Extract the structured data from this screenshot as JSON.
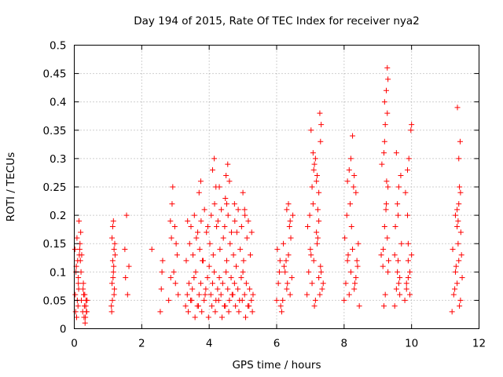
{
  "chart_data": {
    "type": "scatter",
    "title": "Day 194 of 2015, Rate Of TEC Index for receiver nya2",
    "xlabel": "GPS time / hours",
    "ylabel": "ROTI / TECUs",
    "xlim": [
      0,
      12
    ],
    "ylim": [
      0,
      0.5
    ],
    "xticks": [
      "0",
      "2",
      "4",
      "6",
      "8",
      "10",
      "12"
    ],
    "yticks": [
      "0",
      "0.05",
      "0.1",
      "0.15",
      "0.2",
      "0.25",
      "0.3",
      "0.35",
      "0.4",
      "0.45",
      "0.5"
    ],
    "grid": true,
    "marker": "+",
    "color": "#ff0000",
    "series": [
      {
        "name": "ROTI",
        "x": [
          0.02,
          0.05,
          0.08,
          0.1,
          0.12,
          0.15,
          0.17,
          0.19,
          0.03,
          0.06,
          0.09,
          0.12,
          0.14,
          0.16,
          0.18,
          0.2,
          0.22,
          0.04,
          0.07,
          0.11,
          0.13,
          0.21,
          0.25,
          0.28,
          0.3,
          0.33,
          0.35,
          0.37,
          0.27,
          0.29,
          0.31,
          0.34,
          0.36,
          0.38,
          0.26,
          0.32,
          1.1,
          1.12,
          1.14,
          1.16,
          1.18,
          1.2,
          1.13,
          1.15,
          1.17,
          1.19,
          1.11,
          1.21,
          1.14,
          1.16,
          1.12,
          1.18,
          1.5,
          1.52,
          1.55,
          1.58,
          1.62,
          2.3,
          2.55,
          2.6,
          2.62,
          2.58,
          2.8,
          2.85,
          2.88,
          2.9,
          2.95,
          3.0,
          3.05,
          3.08,
          2.92,
          2.98,
          3.02,
          2.86,
          3.3,
          3.35,
          3.4,
          3.45,
          3.5,
          3.55,
          3.6,
          3.65,
          3.7,
          3.75,
          3.8,
          3.85,
          3.9,
          3.95,
          4.0,
          4.05,
          4.1,
          4.15,
          4.2,
          4.25,
          4.3,
          4.35,
          4.4,
          4.45,
          4.5,
          4.55,
          4.6,
          4.65,
          4.7,
          4.75,
          4.8,
          4.85,
          4.9,
          4.95,
          5.0,
          5.05,
          5.1,
          5.15,
          5.2,
          5.25,
          5.3,
          3.32,
          3.42,
          3.52,
          3.62,
          3.72,
          3.82,
          3.92,
          4.02,
          4.12,
          4.22,
          4.32,
          4.42,
          4.52,
          4.62,
          4.72,
          4.82,
          4.92,
          5.02,
          5.12,
          5.22,
          3.38,
          3.48,
          3.58,
          3.68,
          3.78,
          3.88,
          3.98,
          4.08,
          4.18,
          4.28,
          4.38,
          4.48,
          4.58,
          4.68,
          4.78,
          4.88,
          4.98,
          5.08,
          5.18,
          5.28,
          3.36,
          3.46,
          3.56,
          3.66,
          3.76,
          3.86,
          3.96,
          4.06,
          4.16,
          4.26,
          4.36,
          4.46,
          4.56,
          4.66,
          4.76,
          4.86,
          4.96,
          5.06,
          5.16,
          5.26,
          3.7,
          3.75,
          4.1,
          4.15,
          4.2,
          4.5,
          4.55,
          4.48,
          4.6,
          4.52,
          5.0,
          5.05,
          4.75,
          4.3,
          6.0,
          6.05,
          6.1,
          6.15,
          6.2,
          6.25,
          6.3,
          6.35,
          6.4,
          6.45,
          6.02,
          6.12,
          6.22,
          6.32,
          6.42,
          6.08,
          6.18,
          6.28,
          6.38,
          6.48,
          6.3,
          6.35,
          6.4,
          6.9,
          6.95,
          7.0,
          7.05,
          7.1,
          7.15,
          7.2,
          7.25,
          7.3,
          7.35,
          6.92,
          7.02,
          7.12,
          7.22,
          7.32,
          6.98,
          7.08,
          7.18,
          7.28,
          7.38,
          7.05,
          7.1,
          7.15,
          7.2,
          7.25,
          7.3,
          7.28,
          7.32,
          7.02,
          7.08,
          7.12,
          7.22,
          7.18,
          7.25,
          8.0,
          8.05,
          8.1,
          8.15,
          8.2,
          8.25,
          8.3,
          8.35,
          8.4,
          8.45,
          8.02,
          8.12,
          8.22,
          8.32,
          8.42,
          8.08,
          8.18,
          8.28,
          8.38,
          8.1,
          8.15,
          8.2,
          8.3,
          8.35,
          8.25,
          9.1,
          9.15,
          9.2,
          9.25,
          9.3,
          9.12,
          9.18,
          9.22,
          9.28,
          9.2,
          9.25,
          9.3,
          9.28,
          9.32,
          9.22,
          9.18,
          9.26,
          9.2,
          9.24,
          9.28,
          9.3,
          9.16,
          9.5,
          9.55,
          9.6,
          9.65,
          9.7,
          9.52,
          9.58,
          9.62,
          9.68,
          9.55,
          9.6,
          9.65,
          9.5,
          9.58,
          9.62,
          9.8,
          9.85,
          9.9,
          9.95,
          10.0,
          9.82,
          9.88,
          9.92,
          9.98,
          9.85,
          9.9,
          9.95,
          9.88,
          10.0,
          9.9,
          11.2,
          11.25,
          11.3,
          11.35,
          11.4,
          11.45,
          11.5,
          11.22,
          11.28,
          11.32,
          11.38,
          11.42,
          11.48,
          11.3,
          11.35,
          11.4,
          11.45,
          11.38,
          11.42,
          11.35,
          11.4,
          11.44,
          11.36,
          11.46
        ],
        "y": [
          0.14,
          0.1,
          0.16,
          0.12,
          0.08,
          0.13,
          0.15,
          0.17,
          0.06,
          0.11,
          0.05,
          0.09,
          0.19,
          0.14,
          0.12,
          0.1,
          0.13,
          0.03,
          0.02,
          0.04,
          0.07,
          0.05,
          0.03,
          0.06,
          0.04,
          0.02,
          0.05,
          0.03,
          0.08,
          0.02,
          0.06,
          0.04,
          0.03,
          0.05,
          0.07,
          0.01,
          0.04,
          0.08,
          0.12,
          0.1,
          0.06,
          0.15,
          0.05,
          0.09,
          0.11,
          0.07,
          0.03,
          0.13,
          0.18,
          0.19,
          0.16,
          0.14,
          0.14,
          0.09,
          0.2,
          0.06,
          0.11,
          0.14,
          0.03,
          0.1,
          0.12,
          0.07,
          0.05,
          0.19,
          0.16,
          0.22,
          0.1,
          0.08,
          0.13,
          0.06,
          0.25,
          0.18,
          0.15,
          0.09,
          0.04,
          0.06,
          0.08,
          0.05,
          0.07,
          0.09,
          0.1,
          0.04,
          0.06,
          0.08,
          0.12,
          0.05,
          0.07,
          0.09,
          0.11,
          0.06,
          0.08,
          0.1,
          0.05,
          0.07,
          0.09,
          0.06,
          0.08,
          0.04,
          0.1,
          0.07,
          0.05,
          0.09,
          0.06,
          0.08,
          0.11,
          0.07,
          0.05,
          0.09,
          0.1,
          0.06,
          0.08,
          0.04,
          0.07,
          0.05,
          0.06,
          0.12,
          0.15,
          0.13,
          0.16,
          0.14,
          0.12,
          0.17,
          0.15,
          0.13,
          0.18,
          0.14,
          0.16,
          0.12,
          0.15,
          0.13,
          0.17,
          0.14,
          0.12,
          0.16,
          0.13,
          0.03,
          0.05,
          0.02,
          0.04,
          0.03,
          0.06,
          0.02,
          0.04,
          0.03,
          0.05,
          0.02,
          0.04,
          0.03,
          0.06,
          0.04,
          0.03,
          0.05,
          0.02,
          0.04,
          0.03,
          0.19,
          0.18,
          0.2,
          0.17,
          0.19,
          0.21,
          0.18,
          0.2,
          0.22,
          0.19,
          0.21,
          0.18,
          0.2,
          0.17,
          0.19,
          0.21,
          0.18,
          0.2,
          0.19,
          0.17,
          0.24,
          0.26,
          0.28,
          0.3,
          0.25,
          0.27,
          0.29,
          0.23,
          0.26,
          0.22,
          0.24,
          0.21,
          0.22,
          0.25,
          0.05,
          0.08,
          0.12,
          0.03,
          0.15,
          0.1,
          0.07,
          0.13,
          0.06,
          0.09,
          0.14,
          0.04,
          0.11,
          0.08,
          0.16,
          0.1,
          0.05,
          0.12,
          0.18,
          0.2,
          0.21,
          0.22,
          0.19,
          0.06,
          0.1,
          0.14,
          0.08,
          0.12,
          0.05,
          0.15,
          0.09,
          0.11,
          0.07,
          0.18,
          0.13,
          0.04,
          0.16,
          0.1,
          0.2,
          0.22,
          0.17,
          0.06,
          0.08,
          0.25,
          0.28,
          0.3,
          0.27,
          0.24,
          0.33,
          0.38,
          0.36,
          0.35,
          0.31,
          0.29,
          0.21,
          0.26,
          0.19,
          0.05,
          0.08,
          0.12,
          0.06,
          0.1,
          0.14,
          0.07,
          0.09,
          0.11,
          0.04,
          0.16,
          0.13,
          0.18,
          0.08,
          0.15,
          0.2,
          0.22,
          0.25,
          0.12,
          0.26,
          0.28,
          0.3,
          0.27,
          0.24,
          0.34,
          0.13,
          0.11,
          0.18,
          0.22,
          0.25,
          0.29,
          0.31,
          0.36,
          0.38,
          0.4,
          0.42,
          0.44,
          0.46,
          0.12,
          0.06,
          0.04,
          0.26,
          0.33,
          0.21,
          0.16,
          0.1,
          0.14,
          0.04,
          0.07,
          0.12,
          0.09,
          0.15,
          0.18,
          0.22,
          0.25,
          0.27,
          0.31,
          0.2,
          0.06,
          0.13,
          0.1,
          0.08,
          0.05,
          0.08,
          0.12,
          0.1,
          0.13,
          0.24,
          0.28,
          0.3,
          0.35,
          0.07,
          0.09,
          0.06,
          0.2,
          0.36,
          0.15,
          0.03,
          0.06,
          0.1,
          0.08,
          0.12,
          0.05,
          0.09,
          0.14,
          0.07,
          0.11,
          0.15,
          0.04,
          0.13,
          0.2,
          0.18,
          0.22,
          0.24,
          0.19,
          0.25,
          0.21,
          0.3,
          0.33,
          0.39,
          0.17
        ]
      }
    ]
  }
}
